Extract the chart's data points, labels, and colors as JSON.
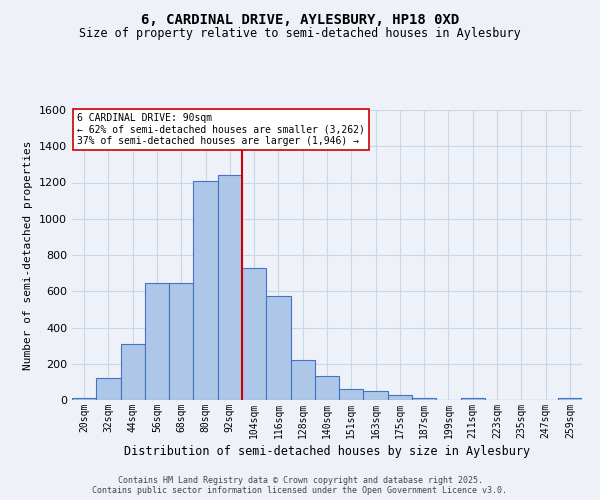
{
  "title1": "6, CARDINAL DRIVE, AYLESBURY, HP18 0XD",
  "title2": "Size of property relative to semi-detached houses in Aylesbury",
  "xlabel": "Distribution of semi-detached houses by size in Aylesbury",
  "ylabel": "Number of semi-detached properties",
  "bar_labels": [
    "20sqm",
    "32sqm",
    "44sqm",
    "56sqm",
    "68sqm",
    "80sqm",
    "92sqm",
    "104sqm",
    "116sqm",
    "128sqm",
    "140sqm",
    "151sqm",
    "163sqm",
    "175sqm",
    "187sqm",
    "199sqm",
    "211sqm",
    "223sqm",
    "235sqm",
    "247sqm",
    "259sqm"
  ],
  "bar_values": [
    10,
    120,
    310,
    645,
    645,
    1210,
    1240,
    730,
    575,
    220,
    130,
    60,
    48,
    25,
    10,
    0,
    10,
    0,
    0,
    0,
    10
  ],
  "bar_color": "#aec6e8",
  "bar_edge_color": "#4472c4",
  "vline_x": 6.5,
  "vline_color": "#cc0000",
  "annotation_title": "6 CARDINAL DRIVE: 90sqm",
  "annotation_line1": "← 62% of semi-detached houses are smaller (3,262)",
  "annotation_line2": "37% of semi-detached houses are larger (1,946) →",
  "annotation_box_color": "#ffffff",
  "annotation_box_edge": "#cc0000",
  "ylim": [
    0,
    1600
  ],
  "yticks": [
    0,
    200,
    400,
    600,
    800,
    1000,
    1200,
    1400,
    1600
  ],
  "grid_color": "#c8d8e8",
  "background_color": "#eef2f8",
  "footer1": "Contains HM Land Registry data © Crown copyright and database right 2025.",
  "footer2": "Contains public sector information licensed under the Open Government Licence v3.0."
}
